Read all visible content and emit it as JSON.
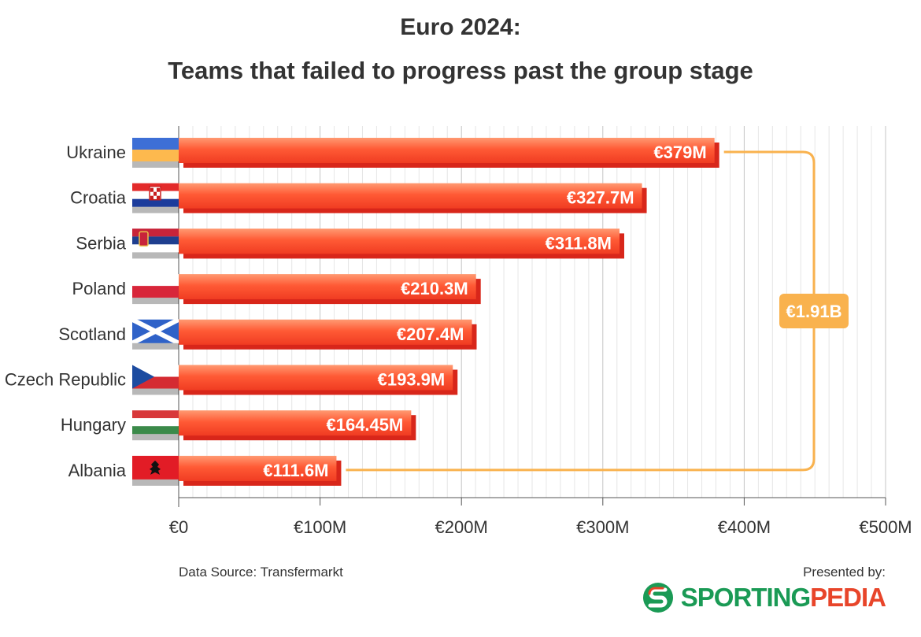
{
  "chart_data": {
    "type": "bar",
    "orientation": "horizontal",
    "title": "Euro 2024:",
    "subtitle": "Teams that failed to progress past the group stage",
    "categories": [
      "Ukraine",
      "Croatia",
      "Serbia",
      "Poland",
      "Scotland",
      "Czech Republic",
      "Hungary",
      "Albania"
    ],
    "values": [
      379,
      327.7,
      311.8,
      210.3,
      207.4,
      193.9,
      164.45,
      111.6
    ],
    "value_labels": [
      "€379M",
      "€327.7M",
      "€311.8M",
      "€210.3M",
      "€207.4M",
      "€193.9M",
      "€164.45M",
      "€111.6M"
    ],
    "xlim": [
      0,
      500
    ],
    "x_ticks": [
      0,
      100,
      200,
      300,
      400,
      500
    ],
    "x_tick_labels": [
      "€0",
      "€100M",
      "€200M",
      "€300M",
      "€400M",
      "€500M"
    ],
    "grid": true,
    "total_label": "€1.91B",
    "bar_color": "#ff5a35",
    "bar_shadow_color": "#d8261a",
    "bracket_color": "#f9b24e",
    "flags": [
      "ukraine-flag",
      "croatia-flag",
      "serbia-flag",
      "poland-flag",
      "scotland-flag",
      "czech-republic-flag",
      "hungary-flag",
      "albania-flag"
    ]
  },
  "footer": {
    "source": "Data Source: Transfermarkt",
    "presented_by": "Presented by:",
    "brand_part1": "SPORTING",
    "brand_part2": "PEDIA"
  }
}
